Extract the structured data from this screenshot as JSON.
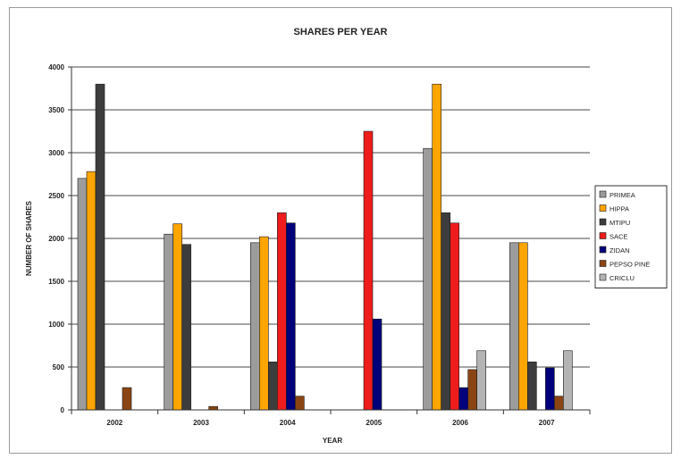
{
  "chart_data": {
    "type": "bar",
    "title": "SHARES PER YEAR",
    "xlabel": "YEAR",
    "ylabel": "NUMBER OF SHARES",
    "ylim": [
      0,
      4000
    ],
    "yticks": [
      "0",
      "500",
      "1000",
      "1500",
      "2000",
      "2500",
      "3000",
      "3500",
      "4000"
    ],
    "grid": true,
    "legend_position": "right",
    "categories": [
      "2002",
      "2003",
      "2004",
      "2005",
      "2006",
      "2007"
    ],
    "series": [
      {
        "name": "PRIMEA",
        "color": "#9c9c9c",
        "values": [
          2700,
          2050,
          1950,
          0,
          3050,
          1950
        ]
      },
      {
        "name": "HIPPA",
        "color": "#ffa500",
        "values": [
          2780,
          2170,
          2020,
          0,
          3800,
          1950
        ]
      },
      {
        "name": "MTIPU",
        "color": "#3d3d3d",
        "values": [
          3800,
          1930,
          560,
          0,
          2300,
          560
        ]
      },
      {
        "name": "SACE",
        "color": "#ee1c1c",
        "values": [
          0,
          0,
          2300,
          3250,
          2180,
          0
        ]
      },
      {
        "name": "ZIDAN",
        "color": "#00007a",
        "values": [
          0,
          0,
          2180,
          1060,
          260,
          490
        ]
      },
      {
        "name": "PEPSO PINE",
        "color": "#8b4513",
        "values": [
          260,
          40,
          160,
          0,
          470,
          160
        ]
      },
      {
        "name": "CRICLU",
        "color": "#b4b4b4",
        "values": [
          0,
          0,
          0,
          0,
          690,
          690
        ]
      }
    ]
  }
}
